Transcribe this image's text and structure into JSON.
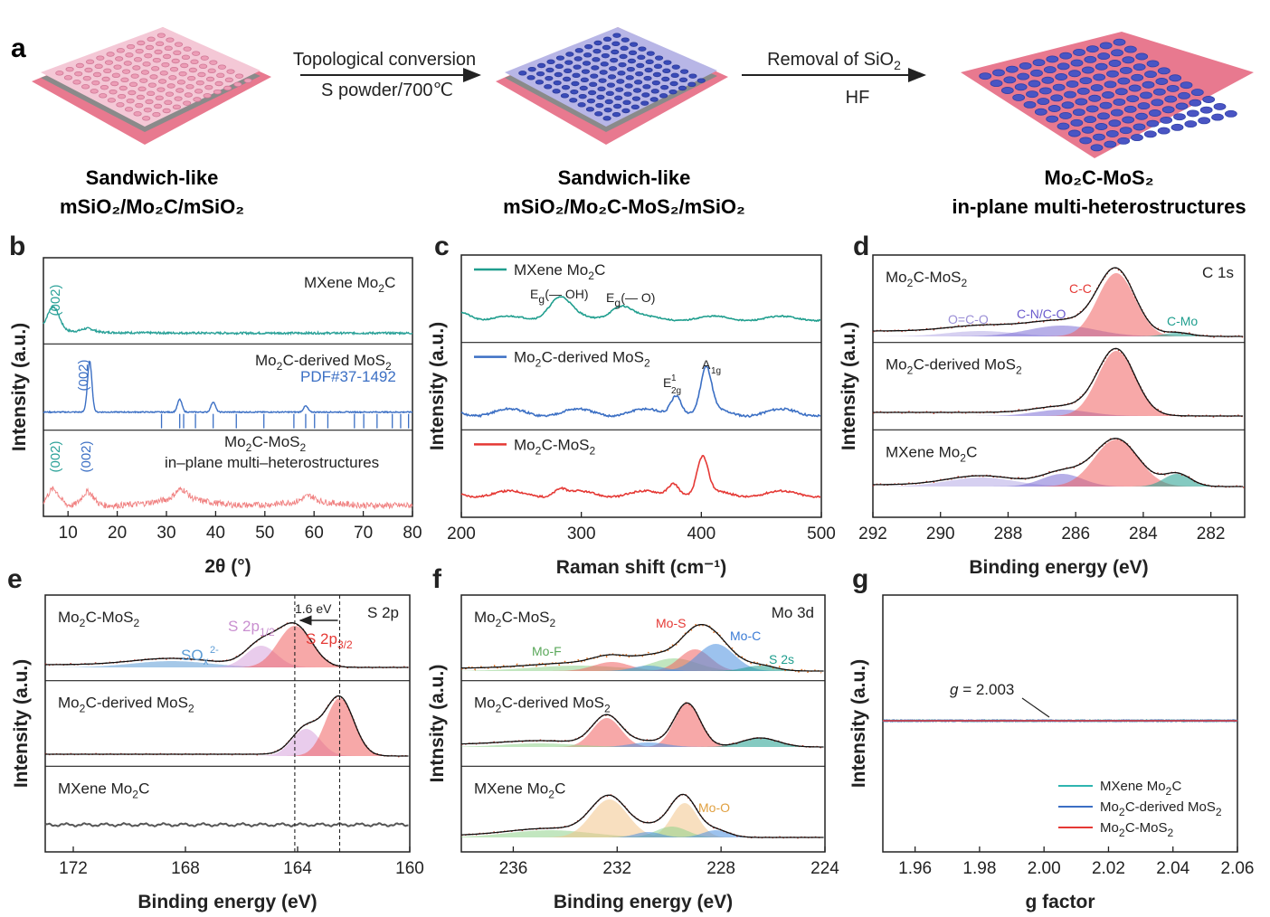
{
  "panel_a": {
    "letter": "a",
    "arrow1_top": "Topological conversion",
    "arrow1_bottom": "S powder/700℃",
    "arrow2_top_main": "Removal of SiO",
    "arrow2_top_sub": "2",
    "arrow2_bottom": "HF",
    "cap1_line1": "Sandwich-like",
    "cap1_line2": "mSiO₂/Mo₂C/mSiO₂",
    "cap2_line1": "Sandwich-like",
    "cap2_line2": "mSiO₂/Mo₂C-MoS₂/mSiO₂",
    "cap3_line1": "Mo₂C-MoS₂",
    "cap3_line2": "in-plane multi-heterostructures",
    "colors": {
      "substrate": "#e8798f",
      "shell": "#f3c9d6",
      "pore_shell": "#ec9db6",
      "pore_blue": "#3a4bb8",
      "tile_blue": "#b4b6e8"
    }
  },
  "chart_data": [
    {
      "panel": "b",
      "type": "line",
      "xlabel": "2θ (°)",
      "ylabel": "Intensity (a.u.)",
      "xlim": [
        5,
        80
      ],
      "xticks": [
        "10",
        "20",
        "30",
        "40",
        "50",
        "60",
        "70",
        "80"
      ],
      "stacks": [
        {
          "label": "MXene Mo₂C",
          "color": "#2aa198",
          "peaks": [
            [
              7,
              1.0
            ],
            [
              14,
              0.15
            ]
          ],
          "annotations": [
            "(002)"
          ]
        },
        {
          "label": "Mo₂C-derived MoS₂",
          "label2": "PDF#37-1492",
          "color": "#3b6fc4",
          "peaks": [
            [
              14.4,
              1.0
            ],
            [
              32.7,
              0.25
            ],
            [
              39.5,
              0.2
            ],
            [
              58.3,
              0.12
            ]
          ],
          "reference_lines": [
            29.0,
            32.7,
            33.5,
            35.9,
            39.5,
            44.2,
            49.8,
            55.9,
            58.3,
            60.1,
            62.8,
            68.2,
            70.1,
            72.8,
            75.9,
            77.6,
            79.2
          ],
          "annotations": [
            "(002)"
          ]
        },
        {
          "label": "Mo₂C-MoS₂",
          "label2": "in–plane multi–heterostructures",
          "color": "#f08080",
          "peaks": [
            [
              7,
              0.6
            ],
            [
              14,
              0.5
            ],
            [
              33,
              0.35
            ],
            [
              59,
              0.2
            ]
          ],
          "annotations": [
            "(002)",
            "(002)"
          ]
        }
      ]
    },
    {
      "panel": "c",
      "type": "line",
      "xlabel": "Raman shift (cm⁻¹)",
      "ylabel": "Intensity (a.u.)",
      "xlim": [
        200,
        500
      ],
      "xticks": [
        "200",
        "300",
        "400",
        "500"
      ],
      "stacks": [
        {
          "label": "MXene Mo₂C",
          "color": "#1f9e8e",
          "peaks": [
            [
              282,
              0.8
            ],
            [
              333,
              0.5
            ]
          ],
          "annotations": [
            "E",
            "(— OH)",
            "E",
            "(— O)"
          ]
        },
        {
          "label": "Mo₂C-derived MoS₂",
          "color": "#3b6fc4",
          "peaks": [
            [
              379,
              0.45
            ],
            [
              404,
              1.0
            ]
          ],
          "annotations": [
            "E",
            "1",
            "2g",
            "A",
            "1g"
          ]
        },
        {
          "label": "Mo₂C-MoS₂",
          "color": "#e53935",
          "peaks": [
            [
              377,
              0.35
            ],
            [
              401,
              1.0
            ],
            [
              282,
              0.15
            ]
          ]
        }
      ]
    },
    {
      "panel": "d",
      "type": "line",
      "xlabel": "Binding energy (eV)",
      "ylabel": "Intensity (a.u.)",
      "xlim": [
        292,
        281
      ],
      "reversed_x": true,
      "xticks": [
        "292",
        "290",
        "288",
        "286",
        "284",
        "282"
      ],
      "corner": "C 1s",
      "stacks": [
        {
          "label": "Mo₂C-MoS₂",
          "components": [
            [
              "O=C-O",
              288.8,
              "#9b8fd6"
            ],
            [
              "C-N/C-O",
              286.4,
              "#6a5acd"
            ],
            [
              "C-C",
              284.8,
              "#e53935"
            ],
            [
              "C-Mo",
              283.0,
              "#1f9e8e"
            ]
          ]
        },
        {
          "label": "Mo₂C-derived MoS₂",
          "components": [
            [
              "C-C",
              284.8,
              "#e53935"
            ],
            [
              "C-N/C-O",
              286.4,
              "#6a5acd"
            ]
          ]
        },
        {
          "label": "MXene Mo₂C",
          "components": [
            [
              "C-C",
              284.8,
              "#e53935"
            ],
            [
              "C-N/C-O",
              286.4,
              "#6a5acd"
            ],
            [
              "O=C-O",
              288.8,
              "#9b8fd6"
            ],
            [
              "C-Mo",
              283.0,
              "#1f9e8e"
            ]
          ]
        }
      ]
    },
    {
      "panel": "e",
      "type": "line",
      "xlabel": "Binding energy (eV)",
      "ylabel": "Intensity (a.u.)",
      "xlim": [
        173,
        160
      ],
      "reversed_x": true,
      "xticks": [
        "172",
        "168",
        "164",
        "160"
      ],
      "corner": "S 2p",
      "shift_label": "1.6 eV",
      "dashed_lines": [
        164.1,
        162.5
      ],
      "stacks": [
        {
          "label": "Mo₂C-MoS₂",
          "components": [
            [
              "SO",
              168.5,
              "#5b9bd5"
            ],
            [
              "S 2p",
              165.3,
              "#c98fd0"
            ],
            [
              "S 2p",
              164.1,
              "#e53935"
            ]
          ],
          "annotations": [
            "x",
            "2-",
            "1/2",
            "3/2"
          ]
        },
        {
          "label": "Mo₂C-derived MoS₂",
          "components": [
            [
              "S 2p",
              163.7,
              "#c98fd0"
            ],
            [
              "S 2p",
              162.5,
              "#e53935"
            ]
          ]
        },
        {
          "label": "MXene Mo₂C",
          "components": []
        }
      ]
    },
    {
      "panel": "f",
      "type": "line",
      "xlabel": "Binding energy (eV)",
      "ylabel": "Intnsity (a.u.)",
      "xlim": [
        238,
        224
      ],
      "reversed_x": true,
      "xticks": [
        "236",
        "232",
        "228",
        "224"
      ],
      "corner": "Mo 3d",
      "stacks": [
        {
          "label": "Mo₂C-MoS₂",
          "components": [
            [
              "Mo-F",
              233,
              "#6ab04c"
            ],
            [
              "Mo-S",
              229,
              "#e53935"
            ],
            [
              "Mo-C",
              228.3,
              "#3a7bd5"
            ],
            [
              "S 2s",
              226.5,
              "#1f9e8e"
            ]
          ]
        },
        {
          "label": "Mo₂C-derived MoS₂",
          "components": [
            [
              "Mo-S",
              229.3,
              "#e53935"
            ],
            [
              "Mo-S",
              232.4,
              "#e53935"
            ]
          ]
        },
        {
          "label": "MXene Mo₂C",
          "components": [
            [
              "Mo-O",
              232.3,
              "#e0a040"
            ],
            [
              "Mo-O",
              229.4,
              "#e0a040"
            ]
          ]
        }
      ]
    },
    {
      "panel": "g",
      "type": "line",
      "xlabel": "g factor",
      "ylabel": "Intensity (a.u.)",
      "xlim": [
        1.95,
        2.06
      ],
      "xticks": [
        "1.96",
        "1.98",
        "2.00",
        "2.02",
        "2.04",
        "2.06"
      ],
      "annotation": "g = 2.003",
      "series": [
        {
          "name": "MXene Mo₂C",
          "color": "#2fb5b0"
        },
        {
          "name": "Mo₂C-derived MoS₂",
          "color": "#3b6fc4"
        },
        {
          "name": "Mo₂C-MoS₂",
          "color": "#e53935"
        }
      ]
    }
  ]
}
